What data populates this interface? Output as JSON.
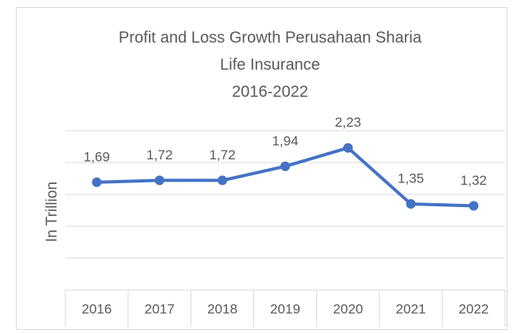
{
  "chart_data": {
    "type": "line",
    "title": [
      "Profit and Loss Growth Perusahaan Sharia",
      "Life Insurance",
      "2016-2022"
    ],
    "y_axis_label": "In Trillion",
    "categories": [
      "2016",
      "2017",
      "2018",
      "2019",
      "2020",
      "2021",
      "2022"
    ],
    "series": [
      {
        "name": "Profit and Loss",
        "color": "#4472c4",
        "values": [
          1.69,
          1.72,
          1.72,
          1.94,
          2.23,
          1.35,
          1.32
        ],
        "value_labels": [
          "1,69",
          "1,72",
          "1,72",
          "1,94",
          "2,23",
          "1,35",
          "1,32"
        ]
      }
    ],
    "ylim": [
      0,
      2.5
    ],
    "yticks": [
      0,
      0.5,
      1,
      1.5,
      2,
      2.5
    ],
    "grid": true
  }
}
